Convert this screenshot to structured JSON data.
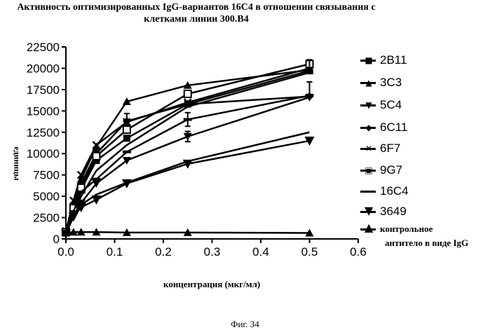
{
  "chart_data": {
    "type": "line",
    "title_line1": "Активность оптимизированных IgG-вариантов 16C4 в отношении связывания с",
    "title_line2": "клетками линии 300.B4",
    "xlabel": "концентрация (мкг/мл)",
    "ylabel": "единицы",
    "xlim": [
      0.0,
      0.6
    ],
    "ylim": [
      0,
      22500
    ],
    "x_ticks": [
      "0.0",
      "0.1",
      "0.2",
      "0.3",
      "0.4",
      "0.5",
      "0.6"
    ],
    "y_ticks": [
      "0",
      "2500",
      "5000",
      "7500",
      "10000",
      "12500",
      "15000",
      "17500",
      "20000",
      "22500"
    ],
    "x": [
      0.0,
      0.0156,
      0.03125,
      0.0625,
      0.125,
      0.25,
      0.5
    ],
    "series": [
      {
        "name": "2B11",
        "marker": "square",
        "values": [
          800,
          3300,
          5800,
          9200,
          11800,
          15800,
          19700
        ]
      },
      {
        "name": "3C3",
        "marker": "triangle-up",
        "values": [
          900,
          4000,
          7000,
          10800,
          16100,
          18000,
          19800
        ]
      },
      {
        "name": "5C4",
        "marker": "triangle-down",
        "values": [
          700,
          2700,
          4200,
          6500,
          9200,
          12000,
          16600
        ]
      },
      {
        "name": "6C11",
        "marker": "diamond",
        "values": [
          800,
          3800,
          6500,
          10000,
          13800,
          15800,
          16700
        ]
      },
      {
        "name": "6F7",
        "marker": "x",
        "values": [
          900,
          4500,
          7500,
          11000,
          13700,
          16000,
          20000
        ]
      },
      {
        "name": "9G7",
        "marker": "square-open",
        "values": [
          800,
          3600,
          6000,
          9700,
          12800,
          17000,
          20500
        ]
      },
      {
        "name": "16C4",
        "marker": "dash",
        "values": [
          700,
          3200,
          5500,
          7000,
          10200,
          14000,
          16800
        ]
      },
      {
        "name": "3649",
        "marker": "triangle-down-large",
        "values": [
          600,
          2600,
          3700,
          4600,
          6500,
          8800,
          11500
        ]
      },
      {
        "name": "контрольное антитело в виде IgG",
        "marker": "triangle-up-filled",
        "values": [
          700,
          800,
          800,
          800,
          750,
          750,
          700
        ]
      }
    ],
    "extra_curves": [
      {
        "values": [
          600,
          2800,
          4000,
          5200,
          6600,
          9100,
          12500
        ]
      },
      {
        "values": [
          700,
          3000,
          5000,
          8000,
          11000,
          15500,
          19500
        ]
      }
    ],
    "legend": {
      "placement": "right",
      "items": [
        "2B11",
        "3C3",
        "5C4",
        "6C11",
        "6F7",
        "9G7",
        "16C4",
        "3649",
        "контрольное",
        "антитело в виде IgG"
      ]
    }
  },
  "caption": "Фиг. 34"
}
